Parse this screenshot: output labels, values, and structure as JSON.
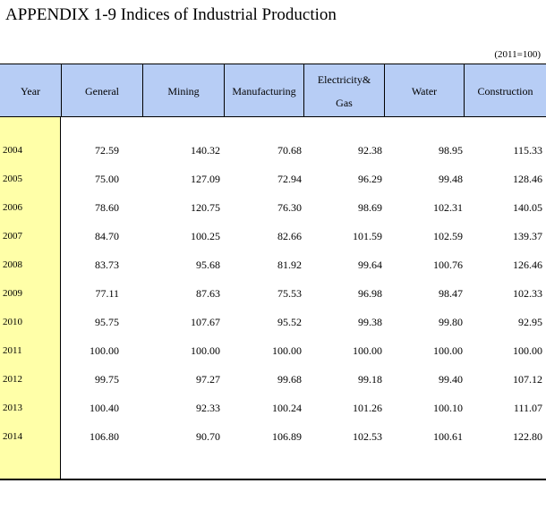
{
  "title": "APPENDIX 1-9  Indices of Industrial Production",
  "unit": "(2011=100)",
  "headers": [
    "Year",
    "General",
    "Mining",
    "Manufacturing",
    "Electricity&",
    "Gas",
    "Water",
    "Construction"
  ],
  "rows": [
    {
      "year": "2004",
      "v": [
        "72.59",
        "140.32",
        "70.68",
        "92.38",
        "98.95",
        "115.33"
      ]
    },
    {
      "year": "2005",
      "v": [
        "75.00",
        "127.09",
        "72.94",
        "96.29",
        "99.48",
        "128.46"
      ]
    },
    {
      "year": "2006",
      "v": [
        "78.60",
        "120.75",
        "76.30",
        "98.69",
        "102.31",
        "140.05"
      ]
    },
    {
      "year": "2007",
      "v": [
        "84.70",
        "100.25",
        "82.66",
        "101.59",
        "102.59",
        "139.37"
      ]
    },
    {
      "year": "2008",
      "v": [
        "83.73",
        "95.68",
        "81.92",
        "99.64",
        "100.76",
        "126.46"
      ]
    },
    {
      "year": "2009",
      "v": [
        "77.11",
        "87.63",
        "75.53",
        "96.98",
        "98.47",
        "102.33"
      ]
    },
    {
      "year": "2010",
      "v": [
        "95.75",
        "107.67",
        "95.52",
        "99.38",
        "99.80",
        "92.95"
      ]
    },
    {
      "year": "2011",
      "v": [
        "100.00",
        "100.00",
        "100.00",
        "100.00",
        "100.00",
        "100.00"
      ]
    },
    {
      "year": "2012",
      "v": [
        "99.75",
        "97.27",
        "99.68",
        "99.18",
        "99.40",
        "107.12"
      ]
    },
    {
      "year": "2013",
      "v": [
        "100.40",
        "92.33",
        "100.24",
        "101.26",
        "100.10",
        "111.07"
      ]
    },
    {
      "year": "2014",
      "v": [
        "106.80",
        "90.70",
        "106.89",
        "102.53",
        "100.61",
        "122.80"
      ]
    }
  ],
  "colors": {
    "header_bg": "#b7cdf5",
    "year_bg": "#ffffa8"
  }
}
